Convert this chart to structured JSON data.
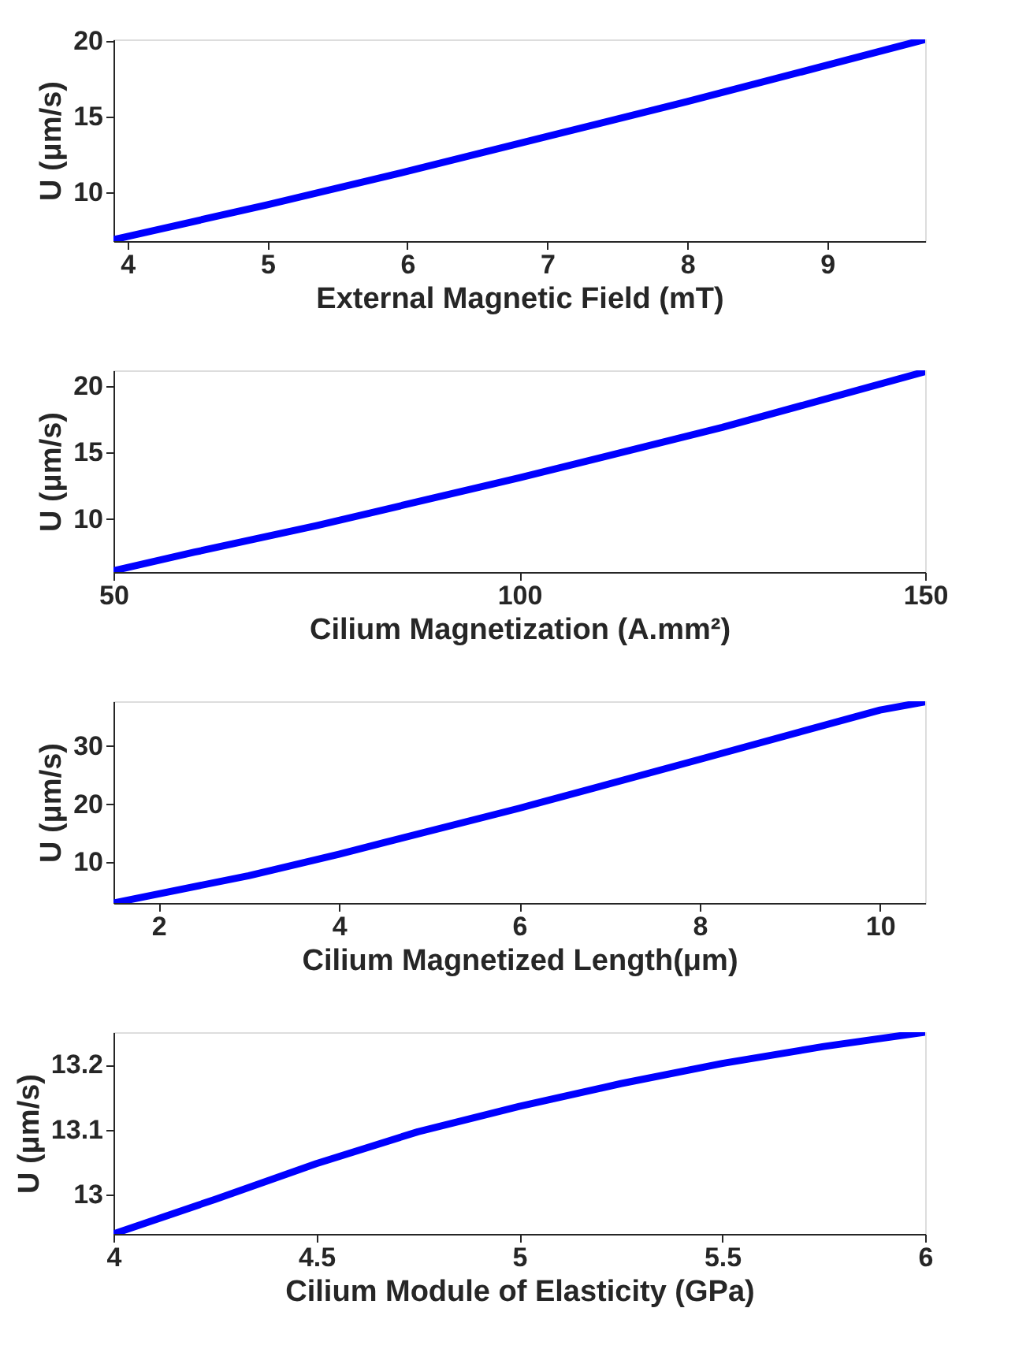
{
  "chart_data": [
    {
      "type": "line",
      "xlabel": "External Magnetic Field (mT)",
      "ylabel": "U (μm/s)",
      "xlim": [
        3.9,
        9.7
      ],
      "ylim": [
        6.8,
        20.1
      ],
      "xticks": [
        4,
        5,
        6,
        7,
        8,
        9
      ],
      "yticks": [
        10,
        15,
        20
      ],
      "x": [
        3.9,
        4,
        5,
        6,
        7,
        8,
        9,
        9.7
      ],
      "series": [
        {
          "color": "#0000ff",
          "values": [
            6.9,
            7.1,
            9.2,
            11.4,
            13.7,
            16.0,
            18.4,
            20.1
          ]
        }
      ]
    },
    {
      "type": "line",
      "xlabel": "Cilium Magnetization (A.mm²)",
      "ylabel": "U (μm/s)",
      "xlim": [
        50,
        150
      ],
      "ylim": [
        6,
        21.2
      ],
      "xticks": [
        50,
        100,
        150
      ],
      "yticks": [
        10,
        15,
        20
      ],
      "x": [
        50,
        60,
        75,
        100,
        125,
        150
      ],
      "series": [
        {
          "color": "#0000ff",
          "values": [
            6.1,
            7.5,
            9.5,
            13.1,
            16.9,
            21.1
          ]
        }
      ]
    },
    {
      "type": "line",
      "xlabel": "Cilium Magnetized Length(μm)",
      "ylabel": "U (μm/s)",
      "xlim": [
        1.5,
        10.5
      ],
      "ylim": [
        3,
        37.7
      ],
      "xticks": [
        2,
        4,
        6,
        8,
        10
      ],
      "yticks": [
        10,
        20,
        30
      ],
      "x": [
        1.5,
        3,
        4,
        4.5,
        6,
        8,
        10,
        10.5
      ],
      "series": [
        {
          "color": "#0000ff",
          "values": [
            3.0,
            7.7,
            11.4,
            13.4,
            19.3,
            27.7,
            36.2,
            37.6
          ]
        }
      ]
    },
    {
      "type": "line",
      "xlabel": "Cilium Module of Elasticity (GPa)",
      "ylabel": "U (μm/s)",
      "xlim": [
        4,
        6
      ],
      "ylim": [
        12.94,
        13.25
      ],
      "xticks": [
        4,
        4.5,
        5,
        5.5,
        6
      ],
      "yticks": [
        13,
        13.1,
        13.2
      ],
      "x": [
        4,
        4.25,
        4.5,
        4.75,
        5,
        5.25,
        5.5,
        5.75,
        6
      ],
      "series": [
        {
          "color": "#0000ff",
          "values": [
            12.94,
            12.993,
            13.048,
            13.097,
            13.136,
            13.171,
            13.202,
            13.228,
            13.25
          ]
        }
      ]
    }
  ]
}
